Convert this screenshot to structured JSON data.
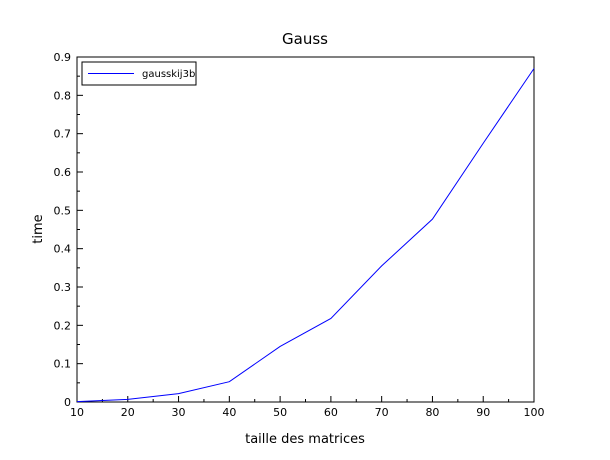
{
  "chart_data": {
    "type": "line",
    "title": "Gauss",
    "xlabel": "taille des matrices",
    "ylabel": "time",
    "xlim": [
      10,
      100
    ],
    "ylim": [
      0,
      0.9
    ],
    "xticks": [
      10,
      20,
      30,
      40,
      50,
      60,
      70,
      80,
      90,
      100
    ],
    "yticks": [
      0,
      0.1,
      0.2,
      0.3,
      0.4,
      0.5,
      0.6,
      0.7,
      0.8,
      0.9
    ],
    "grid": false,
    "legend_position": "top-left",
    "series": [
      {
        "name": "gausskij3b",
        "color": "#0000ff",
        "x": [
          10,
          20,
          30,
          40,
          50,
          60,
          70,
          80,
          90,
          100
        ],
        "y": [
          0.001,
          0.007,
          0.022,
          0.053,
          0.145,
          0.218,
          0.355,
          0.477,
          0.675,
          0.87
        ]
      }
    ]
  }
}
